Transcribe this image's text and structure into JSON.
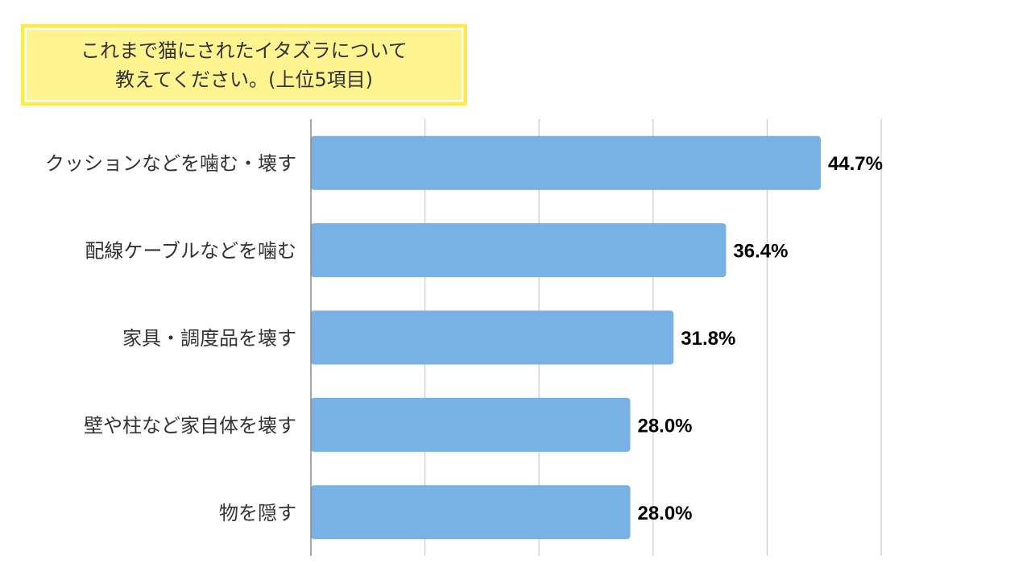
{
  "title": {
    "line1": "これまで猫にされたイタズラについて",
    "line2": "教えてください。(上位5項目)"
  },
  "chart_data": {
    "type": "bar",
    "orientation": "horizontal",
    "categories": [
      "クッションなどを噛む・壊す",
      "配線ケーブルなどを噛む",
      "家具・調度品を壊す",
      "壁や柱など家自体を壊す",
      "物を隠す"
    ],
    "values": [
      44.7,
      36.4,
      31.8,
      28.0,
      28.0
    ],
    "value_labels": [
      "44.7%",
      "36.4%",
      "31.8%",
      "28.0%",
      "28.0%"
    ],
    "xlim": [
      0,
      50
    ],
    "gridlines": [
      10,
      20,
      30,
      40,
      50
    ],
    "grid": true,
    "legend": "none",
    "bar_color": "#78b1e4",
    "grid_color": "#cccccc",
    "axis_color": "#888888"
  }
}
